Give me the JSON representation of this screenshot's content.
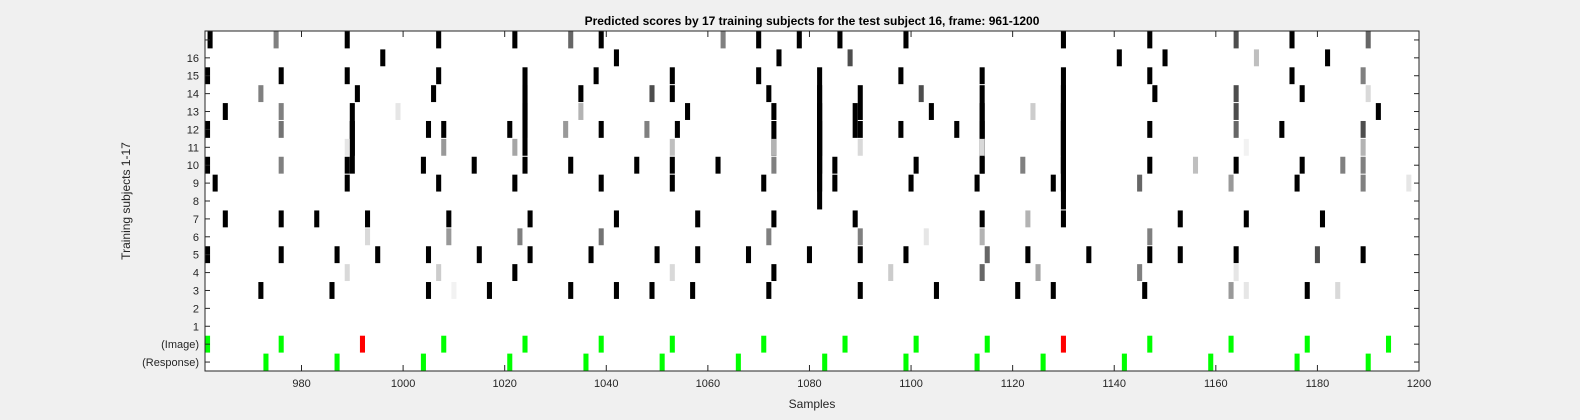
{
  "chart_data": {
    "type": "heatmap",
    "title": "Predicted scores by 17 training subjects for the test subject 16, frame: 961-1200",
    "xlabel": "Samples",
    "ylabel": "Training subjects 1-17",
    "xlim": [
      961,
      1200
    ],
    "xticks": [
      980,
      1000,
      1020,
      1040,
      1060,
      1080,
      1100,
      1120,
      1140,
      1160,
      1180,
      1200
    ],
    "rows": [
      "17",
      "16",
      "15",
      "14",
      "13",
      "12",
      "11",
      "10",
      "9",
      "8",
      "7",
      "6",
      "5",
      "4",
      "3",
      "2",
      "1",
      "(Image)",
      "(Response)"
    ],
    "row_labels_shown": [
      "",
      "16",
      "15",
      "14",
      "13",
      "12",
      "11",
      "10",
      "9",
      "8",
      "7",
      "6",
      "5",
      "4",
      "3",
      "2",
      "1",
      "(Image)",
      "(Response)"
    ],
    "colors": {
      "correct": "#00ff00",
      "incorrect": "#ff0000"
    },
    "marks": [
      {
        "row": 0,
        "items": [
          [
            962,
            0
          ],
          [
            975,
            0.5
          ],
          [
            989,
            0
          ],
          [
            1007,
            0
          ],
          [
            1022,
            0
          ],
          [
            1033,
            0.4
          ],
          [
            1039,
            0
          ],
          [
            1063,
            0.5
          ],
          [
            1070,
            0
          ],
          [
            1078,
            0
          ],
          [
            1086,
            0
          ],
          [
            1099,
            0
          ],
          [
            1130,
            0
          ],
          [
            1147,
            0
          ],
          [
            1164,
            0.3
          ],
          [
            1175,
            0
          ],
          [
            1190,
            0.4
          ]
        ]
      },
      {
        "row": 1,
        "items": [
          [
            996,
            0
          ],
          [
            1042,
            0
          ],
          [
            1074,
            0
          ],
          [
            1088,
            0.3
          ],
          [
            1141,
            0
          ],
          [
            1150,
            0
          ],
          [
            1168,
            0.75
          ],
          [
            1182,
            0
          ]
        ]
      },
      {
        "row": 2,
        "items": [
          [
            961,
            0
          ],
          [
            976,
            0
          ],
          [
            989,
            0
          ],
          [
            1007,
            0
          ],
          [
            1024,
            0,
            3
          ],
          [
            1038,
            0
          ],
          [
            1053,
            0
          ],
          [
            1070,
            0
          ],
          [
            1082,
            0,
            5
          ],
          [
            1098,
            0
          ],
          [
            1114,
            0
          ],
          [
            1130,
            0,
            5
          ],
          [
            1147,
            0
          ],
          [
            1175,
            0
          ],
          [
            1189,
            0.5
          ]
        ]
      },
      {
        "row": 3,
        "items": [
          [
            972,
            0.5
          ],
          [
            991,
            0
          ],
          [
            1006,
            0
          ],
          [
            1024,
            0,
            3
          ],
          [
            1035,
            0
          ],
          [
            1049,
            0.3
          ],
          [
            1053,
            0
          ],
          [
            1072,
            0
          ],
          [
            1082,
            0,
            5
          ],
          [
            1090,
            0,
            2
          ],
          [
            1102,
            0.3
          ],
          [
            1114,
            0,
            3
          ],
          [
            1130,
            0,
            5
          ],
          [
            1148,
            0
          ],
          [
            1164,
            0.3
          ],
          [
            1177,
            0
          ],
          [
            1190,
            0.85
          ]
        ]
      },
      {
        "row": 4,
        "items": [
          [
            965,
            0
          ],
          [
            976,
            0.5
          ],
          [
            990,
            0,
            3
          ],
          [
            999,
            0.9
          ],
          [
            1024,
            0,
            3
          ],
          [
            1035,
            0.7
          ],
          [
            1056,
            0
          ],
          [
            1073,
            0
          ],
          [
            1082,
            0,
            5
          ],
          [
            1089,
            0,
            2
          ],
          [
            1104,
            0
          ],
          [
            1114,
            0,
            3
          ],
          [
            1124,
            0.8
          ],
          [
            1130,
            0,
            5
          ],
          [
            1164,
            0.3
          ],
          [
            1192,
            0
          ]
        ]
      },
      {
        "row": 5,
        "items": [
          [
            961,
            0
          ],
          [
            976,
            0.45
          ],
          [
            990,
            0,
            3
          ],
          [
            1005,
            0
          ],
          [
            1008,
            0
          ],
          [
            1021,
            0
          ],
          [
            1032,
            0.6
          ],
          [
            1039,
            0
          ],
          [
            1048,
            0.5
          ],
          [
            1054,
            0
          ],
          [
            1073,
            0,
            2
          ],
          [
            1082,
            0,
            5
          ],
          [
            1090,
            0
          ],
          [
            1098,
            0
          ],
          [
            1109,
            0
          ],
          [
            1114,
            0,
            3
          ],
          [
            1130,
            0,
            5
          ],
          [
            1147,
            0
          ],
          [
            1164,
            0.4
          ],
          [
            1173,
            0
          ],
          [
            1189,
            0.3
          ]
        ]
      },
      {
        "row": 6,
        "items": [
          [
            989,
            0.9
          ],
          [
            1008,
            0.6
          ],
          [
            1022,
            0.65
          ],
          [
            1053,
            0.75
          ],
          [
            1073,
            0.7
          ],
          [
            1090,
            0.85
          ],
          [
            1114,
            0.85
          ],
          [
            1166,
            0.95
          ],
          [
            1189,
            0.7
          ]
        ]
      },
      {
        "row": 7,
        "items": [
          [
            961,
            0
          ],
          [
            976,
            0.5
          ],
          [
            989,
            0
          ],
          [
            1004,
            0
          ],
          [
            1014,
            0
          ],
          [
            1024,
            0
          ],
          [
            1033,
            0
          ],
          [
            1046,
            0
          ],
          [
            1053,
            0
          ],
          [
            1062,
            0
          ],
          [
            1073,
            0.5
          ],
          [
            1085,
            0
          ],
          [
            1101,
            0
          ],
          [
            1114,
            0
          ],
          [
            1122,
            0.5
          ],
          [
            1130,
            0
          ],
          [
            1147,
            0
          ],
          [
            1156,
            0.75
          ],
          [
            1164,
            0
          ],
          [
            1177,
            0
          ],
          [
            1185,
            0.5
          ],
          [
            1189,
            0.5
          ]
        ]
      },
      {
        "row": 8,
        "items": [
          [
            963,
            0
          ],
          [
            989,
            0
          ],
          [
            1007,
            0
          ],
          [
            1022,
            0
          ],
          [
            1039,
            0
          ],
          [
            1053,
            0
          ],
          [
            1071,
            0
          ],
          [
            1085,
            0
          ],
          [
            1100,
            0
          ],
          [
            1113,
            0
          ],
          [
            1128,
            0
          ],
          [
            1145,
            0.4
          ],
          [
            1163,
            0.6
          ],
          [
            1176,
            0
          ],
          [
            1189,
            0.5
          ],
          [
            1198,
            0.9
          ]
        ]
      },
      {
        "row": 10,
        "items": [
          [
            965,
            0
          ],
          [
            976,
            0
          ],
          [
            983,
            0
          ],
          [
            993,
            0
          ],
          [
            1009,
            0
          ],
          [
            1025,
            0
          ],
          [
            1042,
            0
          ],
          [
            1058,
            0
          ],
          [
            1073,
            0
          ],
          [
            1089,
            0
          ],
          [
            1114,
            0
          ],
          [
            1123,
            0.7
          ],
          [
            1130,
            0
          ],
          [
            1153,
            0
          ],
          [
            1166,
            0
          ],
          [
            1181,
            0
          ]
        ]
      },
      {
        "row": 11,
        "items": [
          [
            993,
            0.85
          ],
          [
            1009,
            0.6
          ],
          [
            1023,
            0.5
          ],
          [
            1039,
            0.45
          ],
          [
            1072,
            0.5
          ],
          [
            1090,
            0.5
          ],
          [
            1103,
            0.9
          ],
          [
            1114,
            0.7
          ],
          [
            1147,
            0.5
          ]
        ]
      },
      {
        "row": 12,
        "items": [
          [
            961,
            0
          ],
          [
            976,
            0
          ],
          [
            987,
            0
          ],
          [
            995,
            0
          ],
          [
            1005,
            0
          ],
          [
            1015,
            0
          ],
          [
            1025,
            0
          ],
          [
            1037,
            0
          ],
          [
            1050,
            0
          ],
          [
            1058,
            0
          ],
          [
            1068,
            0
          ],
          [
            1080,
            0
          ],
          [
            1090,
            0
          ],
          [
            1099,
            0
          ],
          [
            1115,
            0.4
          ],
          [
            1123,
            0
          ],
          [
            1135,
            0
          ],
          [
            1147,
            0
          ],
          [
            1153,
            0
          ],
          [
            1164,
            0
          ],
          [
            1180,
            0.3
          ],
          [
            1189,
            0
          ]
        ]
      },
      {
        "row": 13,
        "items": [
          [
            989,
            0.85
          ],
          [
            1007,
            0.8
          ],
          [
            1022,
            0
          ],
          [
            1053,
            0.85
          ],
          [
            1073,
            0
          ],
          [
            1096,
            0.8
          ],
          [
            1114,
            0.4
          ],
          [
            1125,
            0.65
          ],
          [
            1145,
            0.5
          ],
          [
            1164,
            0.9
          ]
        ]
      },
      {
        "row": 14,
        "items": [
          [
            972,
            0
          ],
          [
            986,
            0
          ],
          [
            1005,
            0
          ],
          [
            1010,
            0.95
          ],
          [
            1017,
            0
          ],
          [
            1033,
            0
          ],
          [
            1042,
            0
          ],
          [
            1049,
            0
          ],
          [
            1057,
            0
          ],
          [
            1072,
            0
          ],
          [
            1090,
            0
          ],
          [
            1105,
            0
          ],
          [
            1121,
            0
          ],
          [
            1128,
            0
          ],
          [
            1146,
            0
          ],
          [
            1163,
            0.6
          ],
          [
            1166,
            0.9
          ],
          [
            1178,
            0
          ],
          [
            1184,
            0.85
          ]
        ]
      },
      {
        "row": 17,
        "items": [
          [
            961,
            "correct"
          ],
          [
            976,
            "correct"
          ],
          [
            992,
            "incorrect"
          ],
          [
            1008,
            "correct"
          ],
          [
            1024,
            "correct"
          ],
          [
            1039,
            "correct"
          ],
          [
            1053,
            "correct"
          ],
          [
            1071,
            "correct"
          ],
          [
            1087,
            "correct"
          ],
          [
            1101,
            "correct"
          ],
          [
            1115,
            "correct"
          ],
          [
            1130,
            "incorrect"
          ],
          [
            1147,
            "correct"
          ],
          [
            1163,
            "correct"
          ],
          [
            1178,
            "correct"
          ],
          [
            1194,
            "correct"
          ]
        ]
      },
      {
        "row": 18,
        "items": [
          [
            973,
            "correct"
          ],
          [
            987,
            "correct"
          ],
          [
            1004,
            "correct"
          ],
          [
            1021,
            "correct"
          ],
          [
            1036,
            "correct"
          ],
          [
            1051,
            "correct"
          ],
          [
            1066,
            "correct"
          ],
          [
            1083,
            "correct"
          ],
          [
            1099,
            "correct"
          ],
          [
            1113,
            "correct"
          ],
          [
            1126,
            "correct"
          ],
          [
            1142,
            "correct"
          ],
          [
            1159,
            "correct"
          ],
          [
            1176,
            "correct"
          ],
          [
            1190,
            "correct"
          ]
        ]
      }
    ]
  }
}
